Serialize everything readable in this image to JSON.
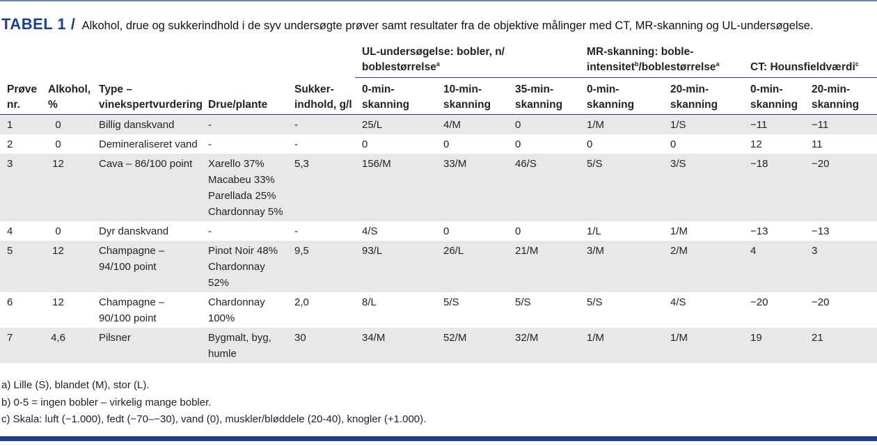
{
  "caption": {
    "label": "TABEL 1",
    "separator": "/",
    "text": "Alkohol, drue og sukkerindhold i de syv undersøgte prøver samt resultater fra de objektive målinger med CT, MR-skanning og UL-undersøgelse."
  },
  "groups": {
    "ul": {
      "text": "UL-undersøgelse: bobler, n/ boblestørrelse",
      "sup": "a"
    },
    "mr": {
      "text1": "MR-skanning: boble-",
      "text2": "intensitet",
      "sup1": "b",
      "text3": "/boblestørrelse",
      "sup2": "a"
    },
    "ct": {
      "text": "CT: Hounsfieldværdi",
      "sup": "c"
    }
  },
  "columns": [
    [
      "Prøve",
      "nr."
    ],
    [
      "Alkohol,",
      "%"
    ],
    [
      "Type –",
      "vinekspertvurdering"
    ],
    [
      "Drue/plante"
    ],
    [
      "Sukker-",
      "indhold, g/l"
    ],
    [
      "0-min-",
      "skanning"
    ],
    [
      "10-min-",
      "skanning"
    ],
    [
      "35-min-",
      "skanning"
    ],
    [
      "0-min-",
      "skanning"
    ],
    [
      "20-min-",
      "skanning"
    ],
    [
      "0-min-",
      "skanning"
    ],
    [
      "20-min-",
      "skanning"
    ]
  ],
  "rows": [
    [
      [
        "1"
      ],
      [
        "0"
      ],
      [
        "Billig danskvand"
      ],
      [
        "-"
      ],
      [
        "-"
      ],
      [
        "25/L"
      ],
      [
        "4/M"
      ],
      [
        "0"
      ],
      [
        "1/M"
      ],
      [
        "1/S"
      ],
      [
        "−11"
      ],
      [
        "−11"
      ]
    ],
    [
      [
        "2"
      ],
      [
        "0"
      ],
      [
        "Demineraliseret vand"
      ],
      [
        "-"
      ],
      [
        "-"
      ],
      [
        "0"
      ],
      [
        "0"
      ],
      [
        "0"
      ],
      [
        "0"
      ],
      [
        "0"
      ],
      [
        "12"
      ],
      [
        "11"
      ]
    ],
    [
      [
        "3"
      ],
      [
        "12"
      ],
      [
        "Cava – 86/100 point"
      ],
      [
        "Xarello 37%",
        "Macabeu 33%",
        "Parellada 25%",
        "Chardonnay 5%"
      ],
      [
        "5,3"
      ],
      [
        "156/M"
      ],
      [
        "33/M"
      ],
      [
        "46/S"
      ],
      [
        "5/S"
      ],
      [
        "3/S"
      ],
      [
        "−18"
      ],
      [
        "−20"
      ]
    ],
    [
      [
        "4"
      ],
      [
        "0"
      ],
      [
        "Dyr danskvand"
      ],
      [
        "-"
      ],
      [
        "-"
      ],
      [
        "4/S"
      ],
      [
        "0"
      ],
      [
        "0"
      ],
      [
        "1/L"
      ],
      [
        "1/M"
      ],
      [
        "−13"
      ],
      [
        "−13"
      ]
    ],
    [
      [
        "5"
      ],
      [
        "12"
      ],
      [
        "Champagne –",
        "94/100 point"
      ],
      [
        "Pinot Noir 48%",
        "Chardonnay",
        "52%"
      ],
      [
        "9,5"
      ],
      [
        "93/L"
      ],
      [
        "26/L"
      ],
      [
        "21/M"
      ],
      [
        "3/M"
      ],
      [
        "2/M"
      ],
      [
        "4"
      ],
      [
        "3"
      ]
    ],
    [
      [
        "6"
      ],
      [
        "12"
      ],
      [
        "Champagne –",
        "90/100 point"
      ],
      [
        "Chardonnay",
        "100%"
      ],
      [
        "2,0"
      ],
      [
        "8/L"
      ],
      [
        "5/S"
      ],
      [
        "5/S"
      ],
      [
        "5/S"
      ],
      [
        "4/S"
      ],
      [
        "−20"
      ],
      [
        "−20"
      ]
    ],
    [
      [
        "7"
      ],
      [
        "4,6"
      ],
      [
        "Pilsner"
      ],
      [
        "Bygmalt, byg,",
        "humle"
      ],
      [
        "30"
      ],
      [
        "34/M"
      ],
      [
        "52/M"
      ],
      [
        "32/M"
      ],
      [
        "1/M"
      ],
      [
        "1/M"
      ],
      [
        "19"
      ],
      [
        "21"
      ]
    ]
  ],
  "footnotes": [
    "a) Lille (S), blandet (M), stor (L).",
    "b) 0-5 = ingen bobler – virkelig mange bobler.",
    "c) Skala: luft (−1.000), fedt (−70–−30), vand (0), muskler/bløddele (20-40), knogler (+1.000)."
  ],
  "colors": {
    "accent": "#1d3d8f",
    "row_shade": "#e8e8e8",
    "top_rule": "#6f86b5"
  }
}
